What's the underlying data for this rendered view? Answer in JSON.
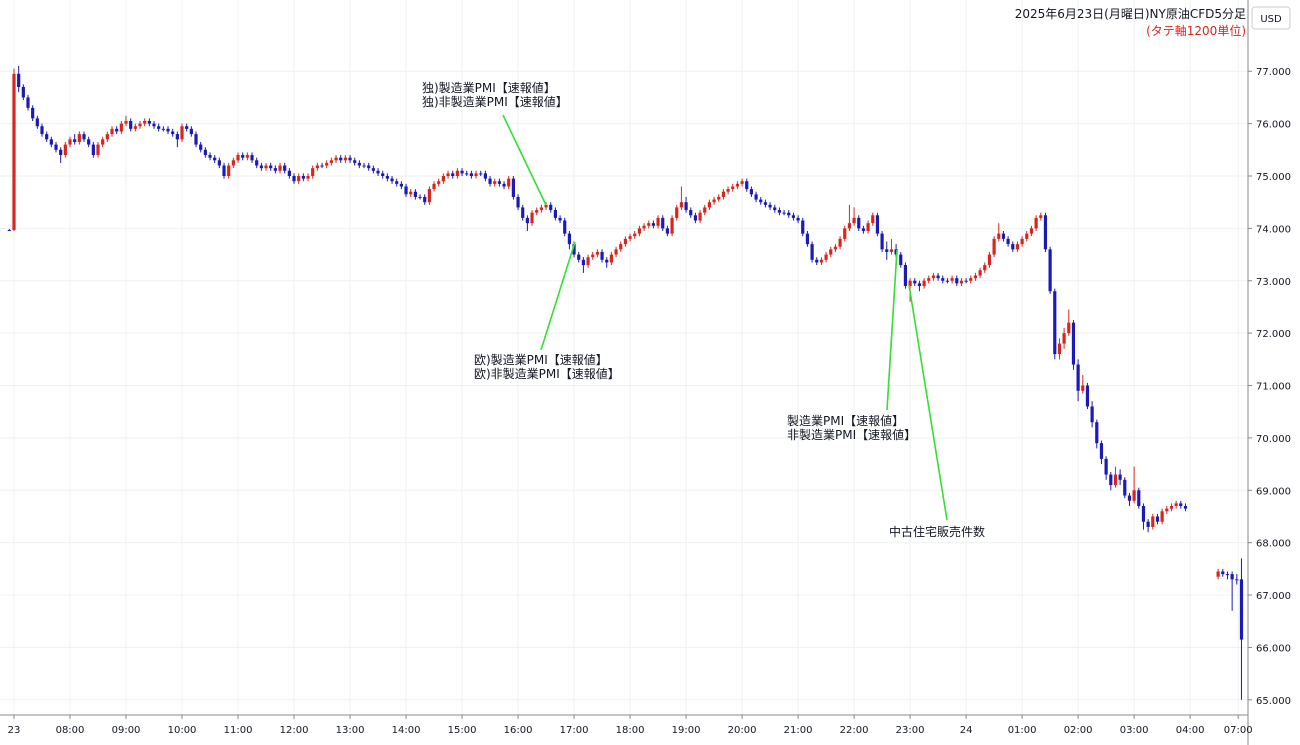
{
  "chart_data": {
    "type": "candlestick",
    "title": "2025年6月23日(月曜日)NY原油CFD5分足",
    "subtitle": "(タテ軸1200単位)",
    "currency": "USD",
    "up_color": "#d9261c",
    "down_color": "#1a1ab8",
    "grid": true,
    "ylim": [
      64.71,
      78.36
    ],
    "yticks": [
      {
        "value": 65,
        "label": "65.000"
      },
      {
        "value": 66,
        "label": "66.000"
      },
      {
        "value": 67,
        "label": "67.000"
      },
      {
        "value": 68,
        "label": "68.000"
      },
      {
        "value": 69,
        "label": "69.000"
      },
      {
        "value": 70,
        "label": "70.000"
      },
      {
        "value": 71,
        "label": "71.000"
      },
      {
        "value": 72,
        "label": "72.000"
      },
      {
        "value": 73,
        "label": "73.000"
      },
      {
        "value": 74,
        "label": "74.000"
      },
      {
        "value": 75,
        "label": "75.000"
      },
      {
        "value": 76,
        "label": "76.000"
      },
      {
        "value": 77,
        "label": "77.000"
      }
    ],
    "xlim": [
      -2,
      265.4
    ],
    "xticks": [
      {
        "value": 1,
        "label": "23"
      },
      {
        "value": 13,
        "label": "08:00"
      },
      {
        "value": 25,
        "label": "09:00"
      },
      {
        "value": 37,
        "label": "10:00"
      },
      {
        "value": 49,
        "label": "11:00"
      },
      {
        "value": 61,
        "label": "12:00"
      },
      {
        "value": 73,
        "label": "13:00"
      },
      {
        "value": 85,
        "label": "14:00"
      },
      {
        "value": 97,
        "label": "15:00"
      },
      {
        "value": 109,
        "label": "16:00"
      },
      {
        "value": 121,
        "label": "17:00"
      },
      {
        "value": 133,
        "label": "18:00"
      },
      {
        "value": 145,
        "label": "19:00"
      },
      {
        "value": 157,
        "label": "20:00"
      },
      {
        "value": 169,
        "label": "21:00"
      },
      {
        "value": 181,
        "label": "22:00"
      },
      {
        "value": 193,
        "label": "23:00"
      },
      {
        "value": 205,
        "label": "24"
      },
      {
        "value": 217,
        "label": "01:00"
      },
      {
        "value": 229,
        "label": "02:00"
      },
      {
        "value": 241,
        "label": "03:00"
      },
      {
        "value": 253,
        "label": "04:00"
      },
      {
        "value": 263.3,
        "label": "07:00"
      }
    ],
    "annotations": [
      {
        "lines": [
          "独)製造業PMI【速報値】",
          "独)非製造業PMI【速報値】"
        ]
      },
      {
        "lines": [
          "欧)製造業PMI【速報値】",
          "欧)非製造業PMI【速報値】"
        ]
      },
      {
        "lines": [
          "製造業PMI【速報値】",
          "非製造業PMI【速報値】"
        ]
      },
      {
        "lines": [
          "中古住宅販売件数"
        ]
      }
    ],
    "x": [
      0,
      1,
      2,
      3,
      4,
      5,
      6,
      7,
      8,
      9,
      10,
      11,
      12,
      13,
      14,
      15,
      16,
      17,
      18,
      19,
      20,
      21,
      22,
      23,
      24,
      25,
      26,
      27,
      28,
      29,
      30,
      31,
      32,
      33,
      34,
      35,
      36,
      37,
      38,
      39,
      40,
      41,
      42,
      43,
      44,
      45,
      46,
      47,
      48,
      49,
      50,
      51,
      52,
      53,
      54,
      55,
      56,
      57,
      58,
      59,
      60,
      61,
      62,
      63,
      64,
      65,
      66,
      67,
      68,
      69,
      70,
      71,
      72,
      73,
      74,
      75,
      76,
      77,
      78,
      79,
      80,
      81,
      82,
      83,
      84,
      85,
      86,
      87,
      88,
      89,
      90,
      91,
      92,
      93,
      94,
      95,
      96,
      97,
      98,
      99,
      100,
      101,
      102,
      103,
      104,
      105,
      106,
      107,
      108,
      109,
      110,
      111,
      112,
      113,
      114,
      115,
      116,
      117,
      118,
      119,
      120,
      121,
      122,
      123,
      124,
      125,
      126,
      127,
      128,
      129,
      130,
      131,
      132,
      133,
      134,
      135,
      136,
      137,
      138,
      139,
      140,
      141,
      142,
      143,
      144,
      145,
      146,
      147,
      148,
      149,
      150,
      151,
      152,
      153,
      154,
      155,
      156,
      157,
      158,
      159,
      160,
      161,
      162,
      163,
      164,
      165,
      166,
      167,
      168,
      169,
      170,
      171,
      172,
      173,
      174,
      175,
      176,
      177,
      178,
      179,
      180,
      181,
      182,
      183,
      184,
      185,
      186,
      187,
      188,
      189,
      190,
      191,
      192,
      193,
      194,
      195,
      196,
      197,
      198,
      199,
      200,
      201,
      202,
      203,
      204,
      205,
      206,
      207,
      208,
      209,
      210,
      211,
      212,
      213,
      214,
      215,
      216,
      217,
      218,
      219,
      220,
      221,
      222,
      223,
      224,
      225,
      226,
      227,
      228,
      229,
      230,
      231,
      232,
      233,
      234,
      235,
      236,
      237,
      238,
      239,
      240,
      241,
      242,
      243,
      244,
      245,
      246,
      247,
      248,
      249,
      250,
      251,
      252,
      259,
      260,
      261,
      262,
      263,
      264
    ],
    "open": [
      73.97,
      73.97,
      76.95,
      76.7,
      76.5,
      76.3,
      76.1,
      75.95,
      75.8,
      75.7,
      75.6,
      75.5,
      75.4,
      75.6,
      75.7,
      75.65,
      75.8,
      75.7,
      75.6,
      75.4,
      75.6,
      75.7,
      75.8,
      75.9,
      75.85,
      76.0,
      76.05,
      75.9,
      75.95,
      76.0,
      76.05,
      76.0,
      75.95,
      75.9,
      75.9,
      75.85,
      75.8,
      75.7,
      75.95,
      75.9,
      75.8,
      75.6,
      75.5,
      75.4,
      75.35,
      75.3,
      75.2,
      75.0,
      75.2,
      75.3,
      75.4,
      75.35,
      75.4,
      75.3,
      75.2,
      75.15,
      75.2,
      75.15,
      75.1,
      75.2,
      75.1,
      75.0,
      74.9,
      75.0,
      74.95,
      75.0,
      75.15,
      75.2,
      75.2,
      75.25,
      75.3,
      75.35,
      75.3,
      75.35,
      75.3,
      75.25,
      75.2,
      75.2,
      75.15,
      75.1,
      75.05,
      75.0,
      74.95,
      74.9,
      74.85,
      74.8,
      74.65,
      74.7,
      74.6,
      74.6,
      74.5,
      74.75,
      74.85,
      74.9,
      75.0,
      75.05,
      75.0,
      75.1,
      75.05,
      75.05,
      75.0,
      75.05,
      75.05,
      74.95,
      74.85,
      74.9,
      74.85,
      74.8,
      74.95,
      74.6,
      74.4,
      74.2,
      74.1,
      74.3,
      74.35,
      74.4,
      74.45,
      74.35,
      74.2,
      74.15,
      73.9,
      73.7,
      73.5,
      73.4,
      73.3,
      73.45,
      73.5,
      73.55,
      73.4,
      73.35,
      73.5,
      73.6,
      73.7,
      73.8,
      73.85,
      73.9,
      74.0,
      74.05,
      74.1,
      74.05,
      74.2,
      74.0,
      73.9,
      74.2,
      74.4,
      74.5,
      74.35,
      74.25,
      74.15,
      74.3,
      74.4,
      74.5,
      74.55,
      74.6,
      74.7,
      74.75,
      74.8,
      74.85,
      74.9,
      74.75,
      74.65,
      74.55,
      74.5,
      74.45,
      74.4,
      74.35,
      74.3,
      74.3,
      74.25,
      74.2,
      74.15,
      73.9,
      73.7,
      73.4,
      73.35,
      73.4,
      73.5,
      73.6,
      73.65,
      73.8,
      74.0,
      74.1,
      74.2,
      74.0,
      73.95,
      74.1,
      74.25,
      73.9,
      73.6,
      73.55,
      73.6,
      73.5,
      73.3,
      72.9,
      73.0,
      72.95,
      72.9,
      73.0,
      73.05,
      73.1,
      73.05,
      73.0,
      73.0,
      73.05,
      72.95,
      73.0,
      73.0,
      73.05,
      73.1,
      73.2,
      73.3,
      73.5,
      73.8,
      73.9,
      73.8,
      73.7,
      73.6,
      73.7,
      73.8,
      73.9,
      74.0,
      74.2,
      74.25,
      73.6,
      72.8,
      71.6,
      71.8,
      72.0,
      72.2,
      71.4,
      70.9,
      71.0,
      70.6,
      70.3,
      69.9,
      69.6,
      69.3,
      69.1,
      69.3,
      69.2,
      68.9,
      68.8,
      69.0,
      68.7,
      68.4,
      68.3,
      68.5,
      68.4,
      68.6,
      68.65,
      68.7,
      68.75,
      68.7,
      67.35,
      67.45,
      67.4,
      67.4,
      67.3,
      67.3
    ],
    "high": [
      73.99,
      77.05,
      77.1,
      76.75,
      76.55,
      76.35,
      76.15,
      76.0,
      75.85,
      75.75,
      75.65,
      75.55,
      75.65,
      75.75,
      75.8,
      75.85,
      75.85,
      75.75,
      75.65,
      75.65,
      75.75,
      75.85,
      75.95,
      75.95,
      76.05,
      76.15,
      76.1,
      76.0,
      76.05,
      76.1,
      76.1,
      76.05,
      76.0,
      75.95,
      75.95,
      75.9,
      75.85,
      76.0,
      76.0,
      75.95,
      75.85,
      75.65,
      75.55,
      75.45,
      75.4,
      75.35,
      75.25,
      75.25,
      75.35,
      75.45,
      75.45,
      75.45,
      75.45,
      75.35,
      75.25,
      75.25,
      75.25,
      75.2,
      75.25,
      75.25,
      75.15,
      75.05,
      75.05,
      75.05,
      75.05,
      75.2,
      75.25,
      75.25,
      75.3,
      75.35,
      75.4,
      75.4,
      75.4,
      75.4,
      75.35,
      75.3,
      75.25,
      75.25,
      75.2,
      75.15,
      75.1,
      75.05,
      75.0,
      74.95,
      74.9,
      74.85,
      74.75,
      74.75,
      74.65,
      74.65,
      74.8,
      74.9,
      74.95,
      75.05,
      75.1,
      75.1,
      75.15,
      75.15,
      75.1,
      75.1,
      75.1,
      75.1,
      75.1,
      75.0,
      74.95,
      74.95,
      74.9,
      75.0,
      75.0,
      74.65,
      74.45,
      74.25,
      74.35,
      74.4,
      74.45,
      74.5,
      74.5,
      74.4,
      74.25,
      74.2,
      73.95,
      73.75,
      73.55,
      73.45,
      73.5,
      73.55,
      73.6,
      73.6,
      73.45,
      73.55,
      73.65,
      73.75,
      73.85,
      73.9,
      73.95,
      74.05,
      74.1,
      74.15,
      74.15,
      74.25,
      74.25,
      74.05,
      74.25,
      74.45,
      74.8,
      74.6,
      74.4,
      74.3,
      74.35,
      74.45,
      74.55,
      74.6,
      74.65,
      74.75,
      74.8,
      74.85,
      74.9,
      74.95,
      74.95,
      74.8,
      74.7,
      74.6,
      74.55,
      74.5,
      74.45,
      74.4,
      74.35,
      74.35,
      74.3,
      74.25,
      74.2,
      73.95,
      73.75,
      73.45,
      73.45,
      73.55,
      73.65,
      73.7,
      73.85,
      74.05,
      74.45,
      74.4,
      74.25,
      74.05,
      74.15,
      74.3,
      74.3,
      73.95,
      73.75,
      73.8,
      73.7,
      73.55,
      73.35,
      73.05,
      73.05,
      73.0,
      73.05,
      73.1,
      73.15,
      73.15,
      73.1,
      73.05,
      73.1,
      73.1,
      73.05,
      73.05,
      73.1,
      73.15,
      73.25,
      73.35,
      73.55,
      73.85,
      74.1,
      73.95,
      73.85,
      73.75,
      73.75,
      73.85,
      73.95,
      74.05,
      74.25,
      74.3,
      74.3,
      73.65,
      72.85,
      71.9,
      72.1,
      72.45,
      72.25,
      71.5,
      71.2,
      71.05,
      70.7,
      70.35,
      69.95,
      69.65,
      69.35,
      69.45,
      69.4,
      69.25,
      68.95,
      69.45,
      69.05,
      68.75,
      68.45,
      68.55,
      68.55,
      68.65,
      68.7,
      68.75,
      68.8,
      68.8,
      68.75,
      67.5,
      67.5,
      67.45,
      67.45,
      67.4,
      67.7
    ],
    "low": [
      73.95,
      73.95,
      76.6,
      76.45,
      76.25,
      76.05,
      75.9,
      75.75,
      75.65,
      75.55,
      75.45,
      75.25,
      75.35,
      75.55,
      75.6,
      75.6,
      75.65,
      75.55,
      75.35,
      75.35,
      75.55,
      75.65,
      75.75,
      75.8,
      75.8,
      75.95,
      75.85,
      75.85,
      75.9,
      75.95,
      75.95,
      75.9,
      75.85,
      75.85,
      75.8,
      75.75,
      75.55,
      75.65,
      75.85,
      75.75,
      75.55,
      75.45,
      75.35,
      75.3,
      75.25,
      75.15,
      74.95,
      74.95,
      75.15,
      75.25,
      75.3,
      75.3,
      75.25,
      75.15,
      75.1,
      75.1,
      75.1,
      75.05,
      75.05,
      75.05,
      74.95,
      74.85,
      74.85,
      74.9,
      74.9,
      74.95,
      75.1,
      75.15,
      75.15,
      75.2,
      75.25,
      75.25,
      75.25,
      75.25,
      75.2,
      75.15,
      75.15,
      75.1,
      75.05,
      75.0,
      74.95,
      74.9,
      74.85,
      74.8,
      74.75,
      74.6,
      74.6,
      74.55,
      74.55,
      74.45,
      74.45,
      74.7,
      74.8,
      74.85,
      74.95,
      74.95,
      74.95,
      75.0,
      75.0,
      74.95,
      74.95,
      75.0,
      74.9,
      74.8,
      74.8,
      74.8,
      74.75,
      74.75,
      74.55,
      74.35,
      74.15,
      73.95,
      74.05,
      74.25,
      74.3,
      74.35,
      74.3,
      74.15,
      74.1,
      73.85,
      73.6,
      73.45,
      73.35,
      73.15,
      73.25,
      73.4,
      73.45,
      73.35,
      73.25,
      73.3,
      73.45,
      73.55,
      73.65,
      73.75,
      73.8,
      73.85,
      73.95,
      74.0,
      74.0,
      74.0,
      73.95,
      73.85,
      73.85,
      74.15,
      74.35,
      74.3,
      74.2,
      74.1,
      74.1,
      74.25,
      74.35,
      74.45,
      74.5,
      74.55,
      74.65,
      74.7,
      74.75,
      74.8,
      74.7,
      74.6,
      74.5,
      74.45,
      74.4,
      74.35,
      74.3,
      74.25,
      74.25,
      74.2,
      74.15,
      74.1,
      73.85,
      73.65,
      73.35,
      73.3,
      73.3,
      73.35,
      73.45,
      73.55,
      73.6,
      73.75,
      73.95,
      74.05,
      73.95,
      73.9,
      73.9,
      74.05,
      73.85,
      73.55,
      73.4,
      73.5,
      73.45,
      73.25,
      72.85,
      72.6,
      72.9,
      72.8,
      72.85,
      72.95,
      73.0,
      73.0,
      72.95,
      72.95,
      72.95,
      72.9,
      72.9,
      72.95,
      72.95,
      73.0,
      73.05,
      73.15,
      73.25,
      73.45,
      73.75,
      73.75,
      73.65,
      73.55,
      73.55,
      73.65,
      73.75,
      73.85,
      73.95,
      74.15,
      73.55,
      72.75,
      71.5,
      71.5,
      71.7,
      71.95,
      71.3,
      70.7,
      70.85,
      70.55,
      70.2,
      69.8,
      69.5,
      69.2,
      69.0,
      69.05,
      69.1,
      68.85,
      68.7,
      68.75,
      68.65,
      68.25,
      68.2,
      68.25,
      68.35,
      68.35,
      68.55,
      68.6,
      68.65,
      68.65,
      68.6,
      67.3,
      67.35,
      67.3,
      66.7,
      67.2,
      65.0
    ],
    "close": [
      73.97,
      76.95,
      76.7,
      76.5,
      76.3,
      76.1,
      75.95,
      75.8,
      75.7,
      75.6,
      75.5,
      75.4,
      75.6,
      75.7,
      75.65,
      75.8,
      75.7,
      75.6,
      75.4,
      75.6,
      75.7,
      75.8,
      75.9,
      75.85,
      76.0,
      76.05,
      75.9,
      75.95,
      76.0,
      76.05,
      76.0,
      75.95,
      75.9,
      75.9,
      75.85,
      75.8,
      75.7,
      75.95,
      75.9,
      75.8,
      75.6,
      75.5,
      75.4,
      75.35,
      75.3,
      75.2,
      75.0,
      75.2,
      75.3,
      75.4,
      75.35,
      75.4,
      75.3,
      75.2,
      75.15,
      75.2,
      75.15,
      75.1,
      75.2,
      75.1,
      75.0,
      74.9,
      75.0,
      74.95,
      75.0,
      75.15,
      75.2,
      75.2,
      75.25,
      75.3,
      75.35,
      75.3,
      75.35,
      75.3,
      75.25,
      75.2,
      75.2,
      75.15,
      75.1,
      75.05,
      75.0,
      74.95,
      74.9,
      74.85,
      74.8,
      74.65,
      74.7,
      74.6,
      74.6,
      74.5,
      74.75,
      74.85,
      74.9,
      75.0,
      75.05,
      75.0,
      75.1,
      75.05,
      75.05,
      75.0,
      75.05,
      75.05,
      74.95,
      74.85,
      74.9,
      74.85,
      74.8,
      74.95,
      74.6,
      74.4,
      74.2,
      74.1,
      74.3,
      74.35,
      74.4,
      74.45,
      74.35,
      74.2,
      74.15,
      73.9,
      73.7,
      73.5,
      73.4,
      73.3,
      73.45,
      73.5,
      73.55,
      73.4,
      73.35,
      73.5,
      73.6,
      73.7,
      73.8,
      73.85,
      73.9,
      74.0,
      74.05,
      74.1,
      74.05,
      74.2,
      74.0,
      73.9,
      74.2,
      74.4,
      74.5,
      74.35,
      74.25,
      74.15,
      74.3,
      74.4,
      74.5,
      74.55,
      74.6,
      74.7,
      74.75,
      74.8,
      74.85,
      74.9,
      74.75,
      74.65,
      74.55,
      74.5,
      74.45,
      74.4,
      74.35,
      74.3,
      74.3,
      74.25,
      74.2,
      74.15,
      73.9,
      73.7,
      73.4,
      73.35,
      73.4,
      73.5,
      73.6,
      73.65,
      73.8,
      74.0,
      74.1,
      74.2,
      74.0,
      73.95,
      74.1,
      74.25,
      73.9,
      73.6,
      73.55,
      73.6,
      73.5,
      73.3,
      72.9,
      73.0,
      72.95,
      72.9,
      73.0,
      73.05,
      73.1,
      73.05,
      73.0,
      73.0,
      73.05,
      72.95,
      73.0,
      73.0,
      73.05,
      73.1,
      73.2,
      73.3,
      73.5,
      73.8,
      73.9,
      73.8,
      73.7,
      73.6,
      73.7,
      73.8,
      73.9,
      74.0,
      74.2,
      74.25,
      73.6,
      72.8,
      71.6,
      71.8,
      72.0,
      72.2,
      71.4,
      70.9,
      71.0,
      70.6,
      70.3,
      69.9,
      69.6,
      69.3,
      69.1,
      69.3,
      69.2,
      68.9,
      68.8,
      69.0,
      68.7,
      68.4,
      68.3,
      68.5,
      68.4,
      68.6,
      68.65,
      68.7,
      68.75,
      68.7,
      68.65,
      67.45,
      67.4,
      67.4,
      67.3,
      67.3,
      66.15
    ]
  }
}
